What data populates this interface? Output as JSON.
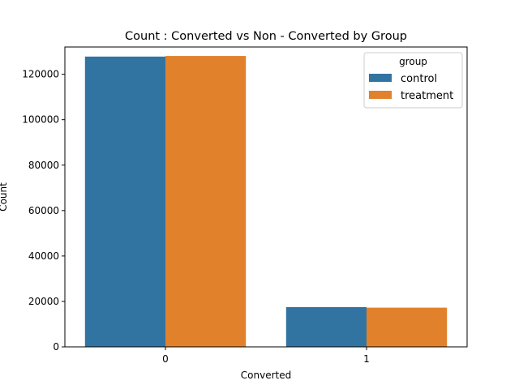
{
  "chart_data": {
    "type": "bar",
    "title": "Count : Converted vs Non - Converted by Group",
    "xlabel": "Converted",
    "ylabel": "Count",
    "categories": [
      "0",
      "1"
    ],
    "series": [
      {
        "name": "control",
        "values": [
          127785,
          17489
        ],
        "color": "#3274a1"
      },
      {
        "name": "treatment",
        "values": [
          128047,
          17264
        ],
        "color": "#e1812c"
      }
    ],
    "ylim": [
      0,
      132000
    ],
    "yticks": [
      0,
      20000,
      40000,
      60000,
      80000,
      100000,
      120000
    ],
    "grid": false,
    "legend": {
      "title": "group",
      "placement": "top-right"
    }
  }
}
